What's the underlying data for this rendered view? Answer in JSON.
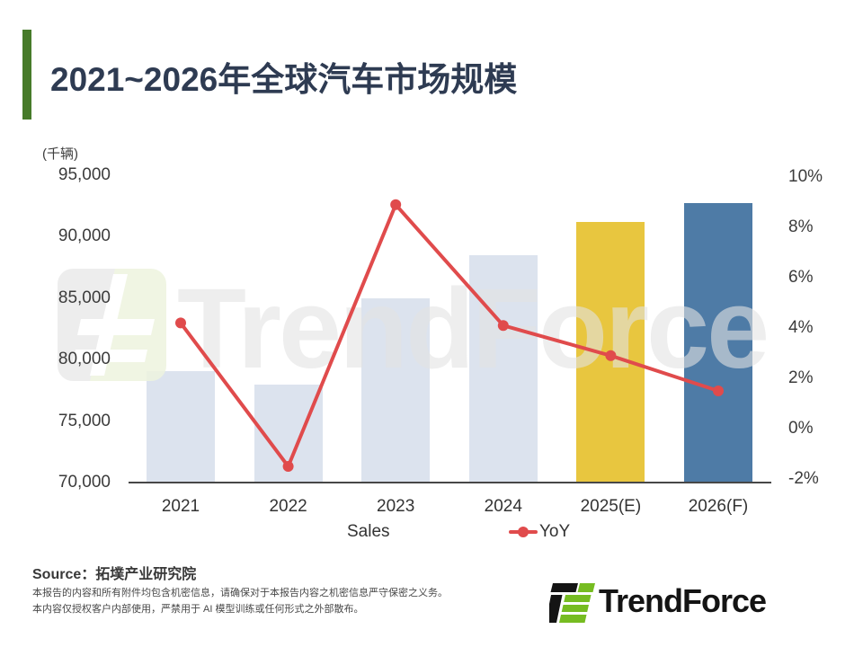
{
  "header": {
    "title": "2021~2026年全球汽车市场规模",
    "accent_color": "#477b2a"
  },
  "watermark": {
    "text": "TrendForce"
  },
  "chart_data": {
    "type": "combo-bar-line",
    "title": "2021~2026年全球汽车市场规模",
    "categories": [
      "2021",
      "2022",
      "2023",
      "2024",
      "2025(E)",
      "2026(F)"
    ],
    "series": [
      {
        "name": "Sales",
        "type": "bar",
        "axis": "left",
        "values": [
          79100,
          78000,
          85000,
          88500,
          91200,
          92700
        ],
        "bar_colors": [
          "#dce3ee",
          "#dce3ee",
          "#dce3ee",
          "#dce3ee",
          "#e8c63f",
          "#4e7ba6"
        ]
      },
      {
        "name": "YoY",
        "type": "line",
        "axis": "right",
        "values": [
          4.2,
          -1.5,
          8.9,
          4.1,
          2.9,
          1.5
        ],
        "color": "#e04b4c"
      }
    ],
    "left_axis": {
      "unit": "(千辆)",
      "min": 70000,
      "max": 95000,
      "tick_values": [
        95000,
        90000,
        85000,
        80000,
        75000,
        70000
      ],
      "tick_labels": [
        "95,000",
        "90,000",
        "85,000",
        "80,000",
        "75,000",
        "70,000"
      ]
    },
    "right_axis": {
      "min": -2,
      "max": 10,
      "tick_values": [
        10,
        8,
        6,
        4,
        2,
        0,
        -2
      ],
      "tick_labels": [
        "10%",
        "8%",
        "6%",
        "4%",
        "2%",
        "0%",
        "-2%"
      ]
    },
    "legend": [
      {
        "label": "Sales",
        "swatch_color": "#dce3ee"
      },
      {
        "label": "YoY",
        "marker_color": "#e04b4c"
      }
    ],
    "grid": false,
    "legend_position": "bottom"
  },
  "footer": {
    "source": "Source：拓墣产业研究院",
    "disclaimer_line1": "本报告的内容和所有附件均包含机密信息，请确保对于本报告内容之机密信息严守保密之义务。",
    "disclaimer_line2": "本内容仅授权客户内部使用，严禁用于 AI 模型训练或任何形式之外部散布。",
    "logo_text": "TrendForce"
  }
}
